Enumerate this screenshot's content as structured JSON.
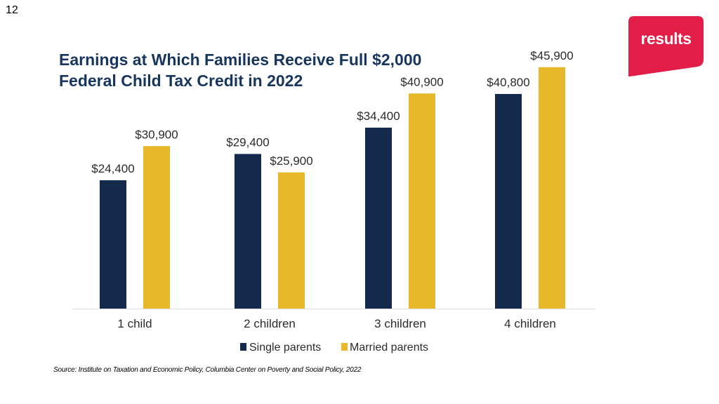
{
  "slide": {
    "number": "12"
  },
  "logo": {
    "text": "results",
    "color": "#e21d48"
  },
  "source": "Source: Institute on Taxation and Economic Policy, Columbia Center on Poverty and Social Policy, 2022",
  "colors": {
    "single": "#132a4c",
    "married": "#e6b82a",
    "title": "#17365d",
    "axis": "#e6e6e6",
    "text": "#2b2b2b"
  },
  "chart_data": {
    "type": "bar",
    "title": "Earnings at Which Families Receive Full $2,000 Federal Child Tax Credit in 2022",
    "title_lines": [
      "Earnings at Which Families Receive Full $2,000",
      "Federal Child Tax Credit in 2022"
    ],
    "categories": [
      "1 child",
      "2 children",
      "3 children",
      "4 children"
    ],
    "series": [
      {
        "name": "Single parents",
        "values": [
          24400,
          29400,
          34400,
          40800
        ],
        "labels": [
          "$24,400",
          "$29,400",
          "$34,400",
          "$40,800"
        ]
      },
      {
        "name": "Married parents",
        "values": [
          30900,
          25900,
          40900,
          45900
        ],
        "labels": [
          "$30,900",
          "$25,900",
          "$40,900",
          "$45,900"
        ]
      }
    ],
    "ylim": [
      0,
      50000
    ],
    "xlabel": "",
    "ylabel": "",
    "grid": false,
    "legend": "bottom"
  }
}
